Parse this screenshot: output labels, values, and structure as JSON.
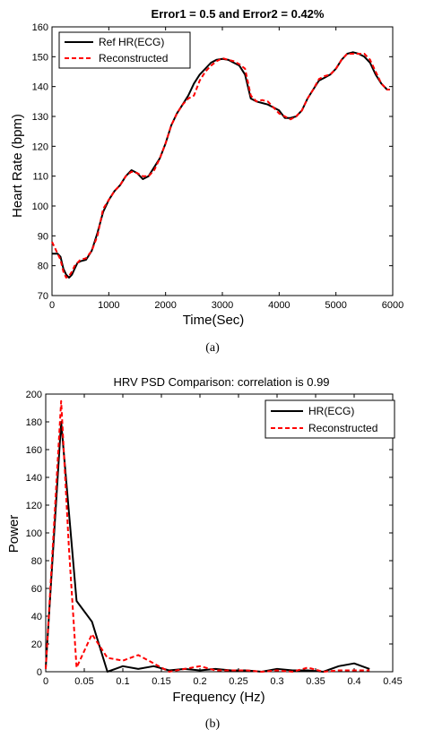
{
  "chart_data": [
    {
      "type": "line",
      "title": "Error1 = 0.5 and Error2 = 0.42%",
      "xlabel": "Time(Sec)",
      "ylabel": "Heart Rate (bpm)",
      "xlim": [
        0,
        6000
      ],
      "ylim": [
        70,
        160
      ],
      "xticks": [
        "0",
        "1000",
        "2000",
        "3000",
        "4000",
        "5000",
        "6000"
      ],
      "yticks": [
        "70",
        "80",
        "90",
        "100",
        "110",
        "120",
        "130",
        "140",
        "150",
        "160"
      ],
      "legend_position": "top-left",
      "panel_label": "(a)",
      "series": [
        {
          "name": "Ref HR(ECG)",
          "color": "#000000",
          "style": "solid",
          "x": [
            0,
            100,
            150,
            200,
            250,
            300,
            350,
            400,
            450,
            500,
            600,
            700,
            800,
            900,
            1000,
            1100,
            1200,
            1300,
            1400,
            1500,
            1600,
            1700,
            1800,
            1900,
            2000,
            2100,
            2200,
            2300,
            2400,
            2500,
            2600,
            2700,
            2800,
            2900,
            3000,
            3100,
            3200,
            3300,
            3400,
            3500,
            3600,
            3700,
            3800,
            3900,
            4000,
            4100,
            4200,
            4300,
            4400,
            4500,
            4600,
            4700,
            4800,
            4900,
            5000,
            5100,
            5200,
            5300,
            5400,
            5500,
            5600,
            5700,
            5800,
            5900,
            5950
          ],
          "y": [
            84,
            84,
            83,
            79,
            77,
            76,
            77,
            79,
            81,
            81.5,
            82,
            85,
            91,
            98,
            102,
            105,
            107,
            110,
            112,
            111,
            109,
            110,
            113,
            116,
            121,
            127,
            131,
            134,
            137,
            141,
            144,
            146,
            148,
            149,
            149.3,
            149,
            148,
            147,
            144,
            136,
            135,
            134.5,
            134,
            133,
            132,
            129.5,
            129.5,
            130,
            132,
            136,
            139,
            142,
            143,
            144,
            146,
            149,
            151,
            151.5,
            151,
            150,
            148,
            144,
            141,
            139,
            139
          ]
        },
        {
          "name": "Reconstructed",
          "color": "#ff0000",
          "style": "dashed",
          "x": [
            0,
            100,
            150,
            200,
            250,
            300,
            350,
            400,
            450,
            500,
            600,
            700,
            800,
            900,
            1000,
            1100,
            1200,
            1300,
            1400,
            1500,
            1600,
            1700,
            1800,
            1900,
            2000,
            2100,
            2200,
            2300,
            2400,
            2500,
            2600,
            2700,
            2800,
            2900,
            3000,
            3100,
            3200,
            3300,
            3400,
            3500,
            3600,
            3700,
            3800,
            3900,
            4000,
            4100,
            4200,
            4300,
            4400,
            4500,
            4600,
            4700,
            4800,
            4900,
            5000,
            5100,
            5200,
            5300,
            5400,
            5500,
            5600,
            5700,
            5800,
            5900,
            5950
          ],
          "y": [
            88,
            84,
            82,
            78,
            76,
            76.5,
            78,
            80,
            81,
            82,
            82.5,
            85,
            90,
            99,
            102,
            105,
            107,
            110,
            111.5,
            111,
            110,
            110,
            112,
            116,
            121,
            127,
            131,
            134,
            136,
            137,
            142,
            145,
            147,
            148.5,
            149.5,
            149,
            148.5,
            147.5,
            146,
            137,
            135,
            135.5,
            135,
            133,
            131,
            130,
            129,
            130,
            132,
            136,
            139,
            142.5,
            143.5,
            144,
            146,
            149,
            151,
            151,
            151,
            151,
            149,
            145,
            141,
            139,
            139
          ]
        }
      ]
    },
    {
      "type": "line",
      "title": "HRV PSD Comparison: correlation is 0.99",
      "xlabel": "Frequency (Hz)",
      "ylabel": "Power",
      "xlim": [
        0,
        0.45
      ],
      "ylim": [
        0,
        200
      ],
      "xticks": [
        "0",
        "0.05",
        "0.1",
        "0.15",
        "0.2",
        "0.25",
        "0.3",
        "0.35",
        "0.4",
        "0.45"
      ],
      "yticks": [
        "0",
        "20",
        "40",
        "60",
        "80",
        "100",
        "120",
        "140",
        "160",
        "180",
        "200"
      ],
      "legend_position": "top-right",
      "panel_label": "(b)",
      "series": [
        {
          "name": "HR(ECG)",
          "color": "#000000",
          "style": "solid",
          "x": [
            0,
            0.02,
            0.04,
            0.06,
            0.08,
            0.1,
            0.12,
            0.14,
            0.16,
            0.18,
            0.2,
            0.22,
            0.24,
            0.26,
            0.28,
            0.3,
            0.32,
            0.34,
            0.36,
            0.38,
            0.4,
            0.42
          ],
          "y": [
            3,
            180,
            51,
            36,
            0,
            4,
            2,
            4,
            1,
            2,
            1,
            2,
            1,
            1,
            0,
            2,
            1,
            1,
            0,
            4,
            6,
            2
          ]
        },
        {
          "name": "Reconstructed",
          "color": "#ff0000",
          "style": "dashed",
          "x": [
            0,
            0.02,
            0.03,
            0.04,
            0.06,
            0.08,
            0.1,
            0.12,
            0.14,
            0.16,
            0.18,
            0.2,
            0.22,
            0.24,
            0.26,
            0.28,
            0.3,
            0.32,
            0.34,
            0.36,
            0.38,
            0.4,
            0.42
          ],
          "y": [
            2,
            195,
            90,
            3,
            27,
            10,
            8,
            12,
            6,
            0,
            2,
            4,
            1,
            1,
            1,
            0,
            1,
            0,
            3,
            0,
            1,
            1,
            1
          ]
        }
      ]
    }
  ]
}
